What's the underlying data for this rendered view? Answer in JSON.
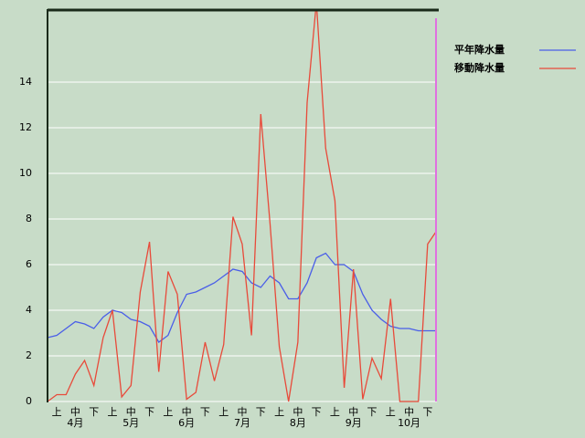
{
  "chart_data": {
    "type": "line",
    "xlim": [
      0,
      21
    ],
    "xticks": [
      {
        "value": 0.5,
        "label": "上"
      },
      {
        "value": 1.5,
        "label": "中"
      },
      {
        "value": 2.5,
        "label": "下"
      },
      {
        "value": 3.5,
        "label": "上"
      },
      {
        "value": 4.5,
        "label": "中"
      },
      {
        "value": 5.5,
        "label": "下"
      },
      {
        "value": 6.5,
        "label": "上"
      },
      {
        "value": 7.5,
        "label": "中"
      },
      {
        "value": 8.5,
        "label": "下"
      },
      {
        "value": 9.5,
        "label": "上"
      },
      {
        "value": 10.5,
        "label": "中"
      },
      {
        "value": 11.5,
        "label": "下"
      },
      {
        "value": 12.5,
        "label": "上"
      },
      {
        "value": 13.5,
        "label": "中"
      },
      {
        "value": 14.5,
        "label": "下"
      },
      {
        "value": 15.5,
        "label": "上"
      },
      {
        "value": 16.5,
        "label": "中"
      },
      {
        "value": 17.5,
        "label": "下"
      },
      {
        "value": 18.5,
        "label": "上"
      },
      {
        "value": 19.5,
        "label": "中"
      },
      {
        "value": 20.5,
        "label": "下"
      }
    ],
    "months": [
      {
        "value": 1.5,
        "label": "4月"
      },
      {
        "value": 4.5,
        "label": "5月"
      },
      {
        "value": 7.5,
        "label": "6月"
      },
      {
        "value": 10.5,
        "label": "7月"
      },
      {
        "value": 13.5,
        "label": "8月"
      },
      {
        "value": 16.5,
        "label": "9月"
      },
      {
        "value": 19.5,
        "label": "10月"
      }
    ],
    "ylim": [
      0,
      17.2
    ],
    "yticks": [
      0,
      2,
      4,
      6,
      8,
      10,
      12,
      14
    ],
    "grid": true,
    "x": [
      0,
      0.5,
      1,
      1.5,
      2,
      2.5,
      3,
      3.5,
      4,
      4.5,
      5,
      5.5,
      6,
      6.5,
      7,
      7.5,
      8,
      8.5,
      9,
      9.5,
      10,
      10.5,
      11,
      11.5,
      12,
      12.5,
      13,
      13.5,
      14,
      14.5,
      15,
      15.5,
      16,
      16.5,
      17,
      17.5,
      18,
      18.5,
      19,
      19.5,
      20,
      20.5,
      21
    ],
    "series": [
      {
        "name": "平年降水量",
        "color": "#4a5ee8",
        "values": [
          2.8,
          2.9,
          3.2,
          3.5,
          3.4,
          3.2,
          3.7,
          4.0,
          3.9,
          3.6,
          3.5,
          3.3,
          2.6,
          2.9,
          3.9,
          4.7,
          4.8,
          5.0,
          5.2,
          5.5,
          5.8,
          5.7,
          5.2,
          5.0,
          5.5,
          5.2,
          4.5,
          4.5,
          5.2,
          6.3,
          6.5,
          6.0,
          6.0,
          5.7,
          4.7,
          4.0,
          3.6,
          3.3,
          3.2,
          3.2,
          3.1,
          3.1,
          3.1
        ]
      },
      {
        "name": "移動降水量",
        "color": "#e84a3a",
        "values": [
          0,
          0.3,
          0.3,
          1.2,
          1.8,
          0.7,
          2.8,
          4.0,
          0.2,
          0.7,
          4.8,
          7.0,
          1.3,
          5.7,
          4.7,
          0.1,
          0.4,
          2.6,
          0.9,
          2.5,
          8.1,
          6.9,
          2.9,
          12.6,
          7.8,
          2.4,
          0,
          2.6,
          13.1,
          17.5,
          11.1,
          8.8,
          0.6,
          5.8,
          0.1,
          1.9,
          1.0,
          4.5,
          0,
          0,
          0,
          6.9,
          7.5
        ]
      }
    ]
  }
}
